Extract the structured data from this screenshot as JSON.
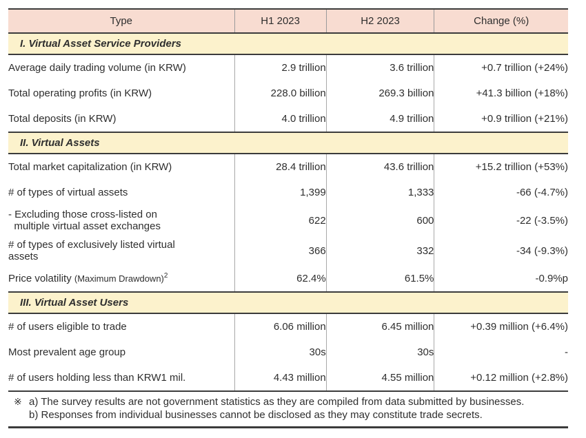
{
  "table": {
    "headers": [
      "Type",
      "H1 2023",
      "H2 2023",
      "Change (%)"
    ],
    "sections": [
      {
        "title": "I. Virtual Asset Service Providers",
        "rows": [
          {
            "label": "Average daily trading volume (in KRW)",
            "h1": "2.9 trillion",
            "h2": "3.6 trillion",
            "change": "+0.7 trillion (+24%)"
          },
          {
            "label": "Total operating profits (in KRW)",
            "h1": "228.0 billion",
            "h2": "269.3 billion",
            "change": "+41.3 billion (+18%)"
          },
          {
            "label": "Total deposits (in KRW)",
            "h1": "4.0 trillion",
            "h2": "4.9 trillion",
            "change": "+0.9 trillion (+21%)"
          }
        ]
      },
      {
        "title": "II. Virtual Assets",
        "rows": [
          {
            "label": "Total market capitalization (in KRW)",
            "h1": "28.4 trillion",
            "h2": "43.6 trillion",
            "change": "+15.2 trillion (+53%)"
          },
          {
            "label": "# of types of virtual assets",
            "h1": "1,399",
            "h2": "1,333",
            "change": "-66 (-4.7%)"
          },
          {
            "label": "- Excluding those cross-listed on\n  multiple virtual asset exchanges",
            "h1": "622",
            "h2": "600",
            "change": "-22 (-3.5%)"
          },
          {
            "label": "# of types of exclusively listed virtual\nassets",
            "h1": "366",
            "h2": "332",
            "change": "-34 (-9.3%)"
          },
          {
            "label_main": "Price volatility ",
            "label_paren": "(Maximum Drawdown)",
            "label_sup": "2",
            "h1": "62.4%",
            "h2": "61.5%",
            "change": "-0.9%p"
          }
        ]
      },
      {
        "title": "III. Virtual Asset Users",
        "rows": [
          {
            "label": "# of users eligible to trade",
            "h1": "6.06 million",
            "h2": "6.45 million",
            "change": "+0.39 million (+6.4%)"
          },
          {
            "label": "Most prevalent age group",
            "h1": "30s",
            "h2": "30s",
            "change": "-"
          },
          {
            "label": "# of users holding less than KRW1 mil.",
            "h1": "4.43 million",
            "h2": "4.55 million",
            "change": "+0.12 million (+2.8%)"
          }
        ]
      }
    ],
    "footnote": {
      "marker": "※",
      "lines": [
        "a) The survey results are not government statistics as they are compiled from data submitted by businesses.",
        "b) Responses from individual businesses cannot be disclosed as they may constitute trade secrets."
      ]
    },
    "colors": {
      "header_bg": "#f8dcd1",
      "section_bg": "#fcf2cc",
      "rule_dark": "#3b3b3b",
      "divider_gray": "#a8a8a8",
      "text": "#2e2e2e"
    }
  }
}
